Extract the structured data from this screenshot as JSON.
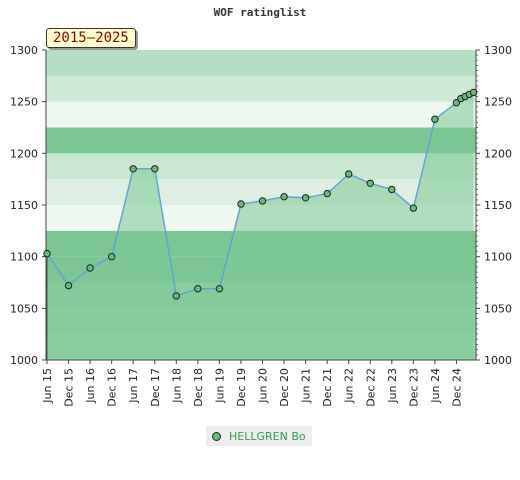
{
  "chart_data": {
    "type": "area",
    "title": "WOF ratinglist",
    "period": "2015–2025",
    "ylim": [
      1000,
      1300
    ],
    "yticks": [
      1000,
      1050,
      1100,
      1150,
      1200,
      1250,
      1300
    ],
    "x_tick_labels": [
      "Jun 15",
      "Dec 15",
      "Jun 16",
      "Dec 16",
      "Jun 17",
      "Dec 17",
      "Jun 18",
      "Dec 18",
      "Jun 19",
      "Dec 19",
      "Jun 20",
      "Dec 20",
      "Jun 21",
      "Dec 21",
      "Jun 22",
      "Dec 22",
      "Jun 23",
      "Dec 23",
      "Jun 24",
      "Dec 24"
    ],
    "grid": true,
    "y_axis_both_sides": true,
    "legend_position": "bottom",
    "colors": {
      "line": "#5fa6d6",
      "fill": "#7ec996",
      "marker": "#66bb7a",
      "marker_stroke": "#222222",
      "band_light": "#eef7f0",
      "band_dark": "#7cc594",
      "legend_text": "#2e9e52"
    },
    "series": [
      {
        "name": "HELLGREN Bo",
        "points": [
          {
            "x": "Jun 15",
            "y": 1103
          },
          {
            "x": "Dec 15",
            "y": 1072
          },
          {
            "x": "Jun 16",
            "y": 1089
          },
          {
            "x": "Dec 16",
            "y": 1100
          },
          {
            "x": "Jun 17",
            "y": 1185
          },
          {
            "x": "Dec 17",
            "y": 1185
          },
          {
            "x": "Jun 18",
            "y": 1062
          },
          {
            "x": "Dec 18",
            "y": 1069
          },
          {
            "x": "Jun 19",
            "y": 1069
          },
          {
            "x": "Dec 19",
            "y": 1151
          },
          {
            "x": "Jun 20",
            "y": 1154
          },
          {
            "x": "Dec 20",
            "y": 1158
          },
          {
            "x": "Jun 21",
            "y": 1157
          },
          {
            "x": "Dec 21",
            "y": 1161
          },
          {
            "x": "Jun 22",
            "y": 1180
          },
          {
            "x": "Dec 22",
            "y": 1171
          },
          {
            "x": "Jun 23",
            "y": 1165
          },
          {
            "x": "Dec 23",
            "y": 1147
          },
          {
            "x": "Jun 24",
            "y": 1233
          },
          {
            "x": "Dec 24",
            "y": 1249
          },
          {
            "x": "Dec 24",
            "y": 1253
          },
          {
            "x": "Dec 24",
            "y": 1255
          },
          {
            "x": "Dec 24",
            "y": 1257
          },
          {
            "x": "Dec 24",
            "y": 1259
          }
        ]
      }
    ]
  }
}
